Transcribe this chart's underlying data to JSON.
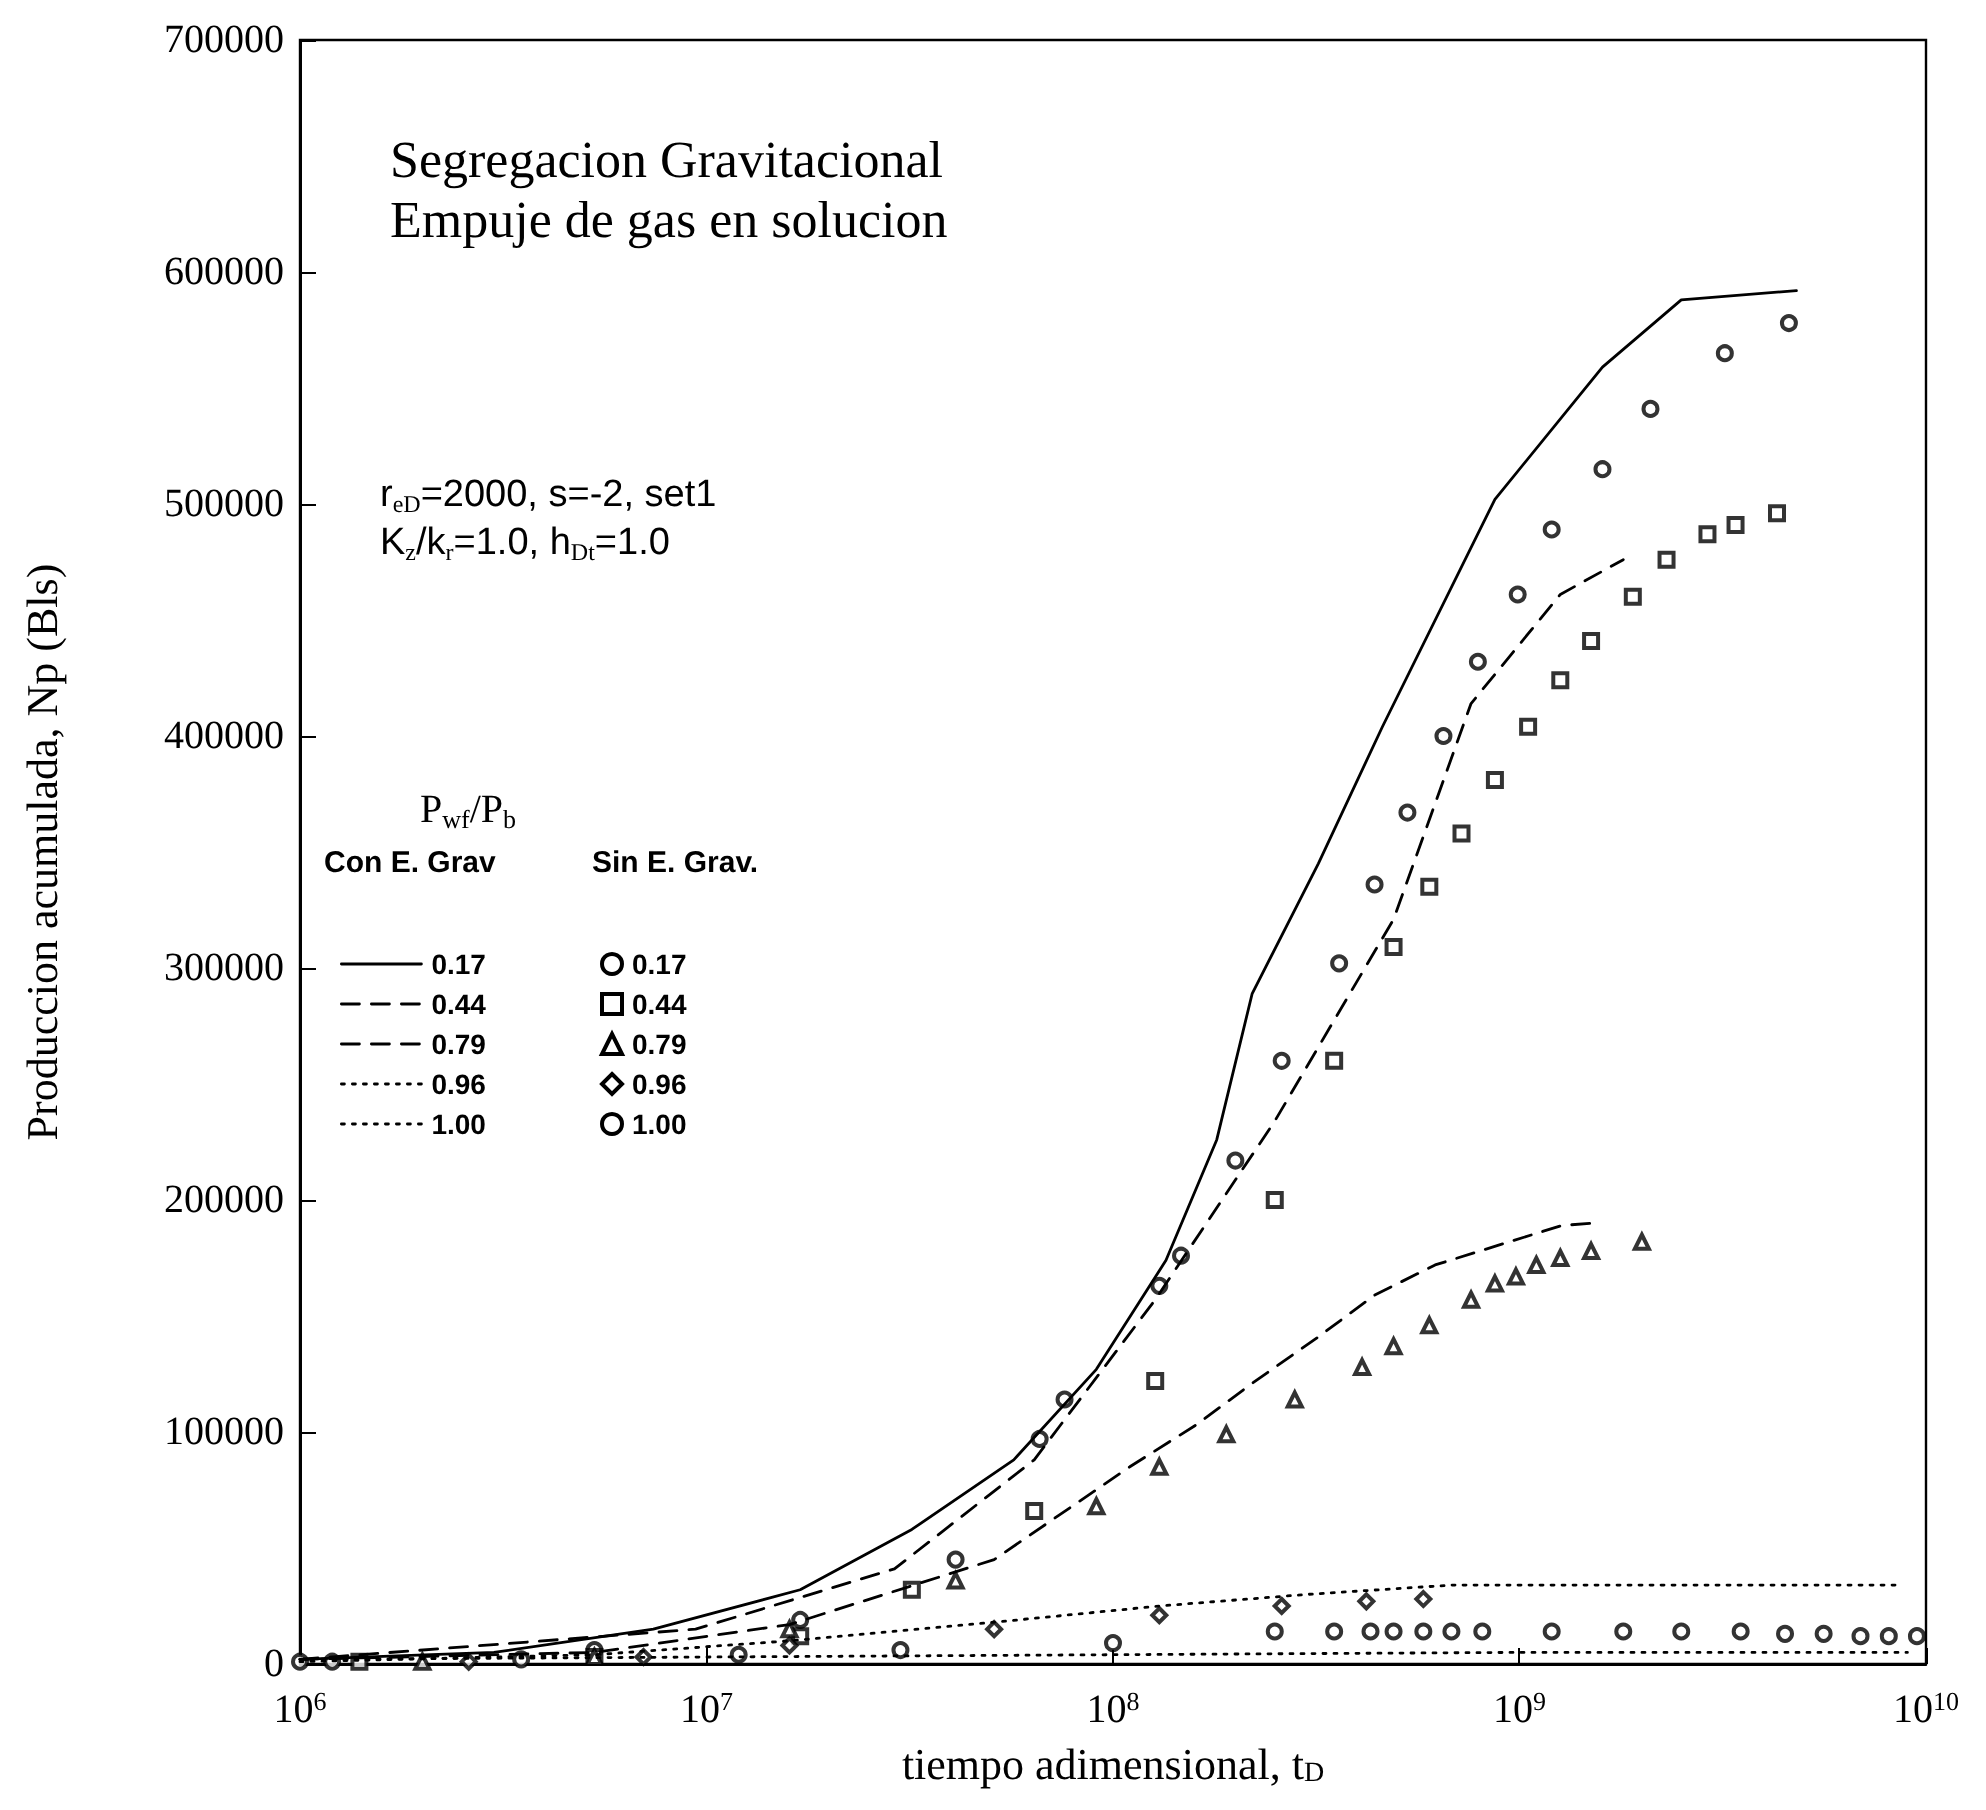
{
  "chart_data": {
    "type": "line",
    "title": "Segregacion Gravitacional",
    "subtitle": "Empuje de gas en solucion",
    "xlabel": "tiempo adimensional, t$_{D}$",
    "ylabel": "Produccion acumulada, Np (Bls)",
    "legend_title": "P$_{wf}$/P$_{b}$",
    "annotations": [
      "r$_{eD}$=2000, s=-2, set1",
      "K$_{z}$/k$_{r}$=1.0, h$_{Dt}$=1.0",
      "Con E. Grav",
      "Sin E. Grav."
    ],
    "log": "x",
    "xlim": [
      1000000,
      10000000000
    ],
    "xticks": [
      {
        "value": 1000000,
        "label": "10$^{6}$"
      },
      {
        "value": 10000000,
        "label": "10$^{7}$"
      },
      {
        "value": 100000000,
        "label": "10$^{8}$"
      },
      {
        "value": 1000000000,
        "label": "10$^{9}$"
      },
      {
        "value": 10000000000,
        "label": "10$^{10}$"
      }
    ],
    "ylim": [
      0,
      700000
    ],
    "yticks": [
      0,
      100000,
      200000,
      300000,
      400000,
      500000,
      600000,
      700000
    ],
    "grid": false,
    "legend": "left",
    "series": [
      {
        "name": "0.17",
        "marker": "none",
        "line_style": "solid",
        "color": "#000000",
        "x": [
          1000000.0,
          3000000.0,
          7400000.0,
          17000000.0,
          32000000.0,
          57000000.0,
          91000000.0,
          135000000.0,
          180000000.0,
          220000000.0,
          320000000.0,
          460000000.0,
          870000000.0,
          1600000000.0,
          2500000000.0,
          4800000000.0
        ],
        "values": [
          2000,
          5000,
          15000,
          32000,
          58000,
          88000,
          127000,
          174000,
          226000,
          289000,
          345000,
          404000,
          502000,
          559000,
          588000,
          592000
        ]
      },
      {
        "name": "0.44",
        "marker": "none",
        "line_style": "dashed",
        "color": "#000000",
        "x": [
          1000000.0,
          9400000.0,
          29000000.0,
          64000000.0,
          127000000.0,
          250000000.0,
          490000000.0,
          760000000.0,
          1260000000.0,
          1800000000.0
        ],
        "values": [
          2000,
          15000,
          41000,
          88000,
          157000,
          234000,
          321000,
          414000,
          461000,
          476000
        ]
      },
      {
        "name": "0.79",
        "marker": "none",
        "line_style": "dashed",
        "color": "#000000",
        "x": [
          1000000.0,
          5300000.0,
          16000000.0,
          51000000.0,
          110000000.0,
          160000000.0,
          220000000.0,
          320000000.0,
          440000000.0,
          620000000.0,
          1270000000.0,
          1500000000.0
        ],
        "values": [
          2000,
          5000,
          17000,
          45000,
          85000,
          103000,
          121000,
          141000,
          159000,
          172000,
          189000,
          190000
        ]
      },
      {
        "name": "0.96",
        "marker": "none",
        "line_style": "dotted",
        "color": "#000000",
        "x": [
          1000000.0,
          5300000.0,
          16000000.0,
          51000000.0,
          130000000.0,
          300000000.0,
          680000000.0,
          2000000000.0,
          8500000000.0
        ],
        "values": [
          1000,
          4000,
          10000,
          18000,
          25000,
          30000,
          34000,
          34000,
          34000
        ]
      },
      {
        "name": "1.00",
        "marker": "none",
        "line_style": "dotted",
        "color": "#000000",
        "x": [
          1000000.0,
          10000000.0,
          100000000.0,
          1000000000.0,
          9000000000.0
        ],
        "values": [
          2000,
          3000,
          4000,
          5000,
          5000
        ]
      },
      {
        "name": "0.17",
        "type": "scatter",
        "marker": "circle",
        "color": "#000000",
        "x": [
          1000000.0,
          5300000.0,
          17000000.0,
          41000000.0,
          66000000.0,
          76000000.0,
          130000000.0,
          147000000.0,
          200000000.0,
          260000000.0,
          360000000.0,
          440000000.0,
          530000000.0,
          650000000.0,
          790000000.0,
          990000000.0,
          1200000000.0,
          1600000000.0,
          2100000000.0,
          3200000000.0,
          4600000000.0
        ],
        "values": [
          1000,
          6000,
          19000,
          45000,
          97000,
          114000,
          163000,
          176000,
          217000,
          260000,
          302000,
          336000,
          367000,
          400000,
          432000,
          461000,
          489000,
          515000,
          541000,
          565000,
          578000
        ]
      },
      {
        "name": "0.44",
        "type": "scatter",
        "marker": "square",
        "color": "#000000",
        "x": [
          1400000.0,
          5300000.0,
          17000000.0,
          32000000.0,
          64000000.0,
          127000000.0,
          250000000.0,
          350000000.0,
          490000000.0,
          600000000.0,
          720000000.0,
          870000000.0,
          1050000000.0,
          1260000000.0,
          1500000000.0,
          1900000000.0,
          2300000000.0,
          2900000000.0,
          3400000000.0,
          4300000000.0
        ],
        "values": [
          1000,
          3000,
          12000,
          32000,
          66000,
          122000,
          200000,
          260000,
          309000,
          335000,
          358000,
          381000,
          404000,
          424000,
          441000,
          460000,
          476000,
          487000,
          491000,
          496000
        ]
      },
      {
        "name": "0.79",
        "type": "scatter",
        "marker": "triangle",
        "color": "#000000",
        "x": [
          2000000.0,
          5300000.0,
          16000000.0,
          41000000.0,
          91000000.0,
          130000000.0,
          190000000.0,
          280000000.0,
          410000000.0,
          490000000.0,
          600000000.0,
          760000000.0,
          870000000.0,
          980000000.0,
          1100000000.0,
          1260000000.0,
          1500000000.0,
          2000000000.0
        ],
        "values": [
          1000,
          3000,
          15000,
          36000,
          68000,
          85000,
          99000,
          114000,
          128000,
          137000,
          146000,
          157000,
          164000,
          167000,
          172000,
          175000,
          178000,
          182000
        ]
      },
      {
        "name": "0.96",
        "type": "scatter",
        "marker": "diamond",
        "color": "#000000",
        "x": [
          2600000.0,
          7000000.0,
          16000000.0,
          51000000.0,
          130000000.0,
          260000000.0,
          420000000.0,
          580000000.0
        ],
        "values": [
          1000,
          3000,
          8000,
          15000,
          21000,
          25000,
          27000,
          28000
        ]
      },
      {
        "name": "1.00",
        "type": "scatter",
        "marker": "circle",
        "color": "#000000",
        "x": [
          1200000.0,
          3500000.0,
          12000000.0,
          30000000.0,
          100000000.0,
          250000000.0,
          350000000.0,
          430000000.0,
          490000000.0,
          580000000.0,
          680000000.0,
          810000000.0,
          1200000000.0,
          1800000000.0,
          2500000000.0,
          3500000000.0,
          4500000000.0,
          5600000000.0,
          6900000000.0,
          8100000000.0,
          9500000000.0
        ],
        "values": [
          1000,
          2000,
          4000,
          6000,
          9000,
          14000,
          14000,
          14000,
          14000,
          14000,
          14000,
          14000,
          14000,
          14000,
          14000,
          14000,
          13000,
          13000,
          12000,
          12000,
          12000
        ]
      }
    ]
  }
}
